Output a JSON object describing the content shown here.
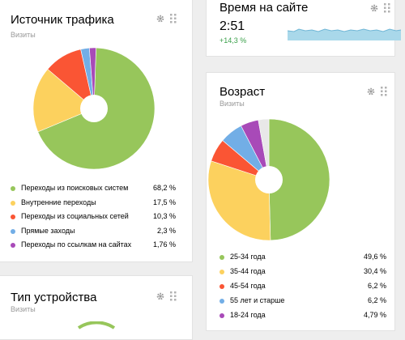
{
  "traffic": {
    "title": "Источник трафика",
    "subtitle": "Визиты",
    "items": [
      {
        "label": "Переходы из поисковых систем",
        "value": "68,2 %",
        "color": "#97c65b"
      },
      {
        "label": "Внутренние переходы",
        "value": "17,5 %",
        "color": "#fcd15e"
      },
      {
        "label": "Переходы из социальных сетей",
        "value": "10,3 %",
        "color": "#fa5534"
      },
      {
        "label": "Прямые заходы",
        "value": "2,3 %",
        "color": "#72aee6"
      },
      {
        "label": "Переходы по ссылкам на сайтах",
        "value": "1,76 %",
        "color": "#a84ab8"
      }
    ]
  },
  "time": {
    "title": "Время на сайте",
    "value": "2:51",
    "delta": "+14,3 %",
    "spark_color": "#a9d8ea"
  },
  "age": {
    "title": "Возраст",
    "subtitle": "Визиты",
    "items": [
      {
        "label": "25-34 года",
        "value": "49,6 %",
        "color": "#97c65b"
      },
      {
        "label": "35-44 года",
        "value": "30,4 %",
        "color": "#fcd15e"
      },
      {
        "label": "45-54 года",
        "value": "6,2 %",
        "color": "#fa5534"
      },
      {
        "label": "55 лет и старше",
        "value": "6,2 %",
        "color": "#72aee6"
      },
      {
        "label": "18-24 года",
        "value": "4,79 %",
        "color": "#a84ab8"
      }
    ],
    "remainder_color": "#e8e8e8"
  },
  "device": {
    "title": "Тип устройства",
    "subtitle": "Визиты"
  },
  "icons": {
    "settings": "gear-icon",
    "drag": "grip-icon"
  }
}
